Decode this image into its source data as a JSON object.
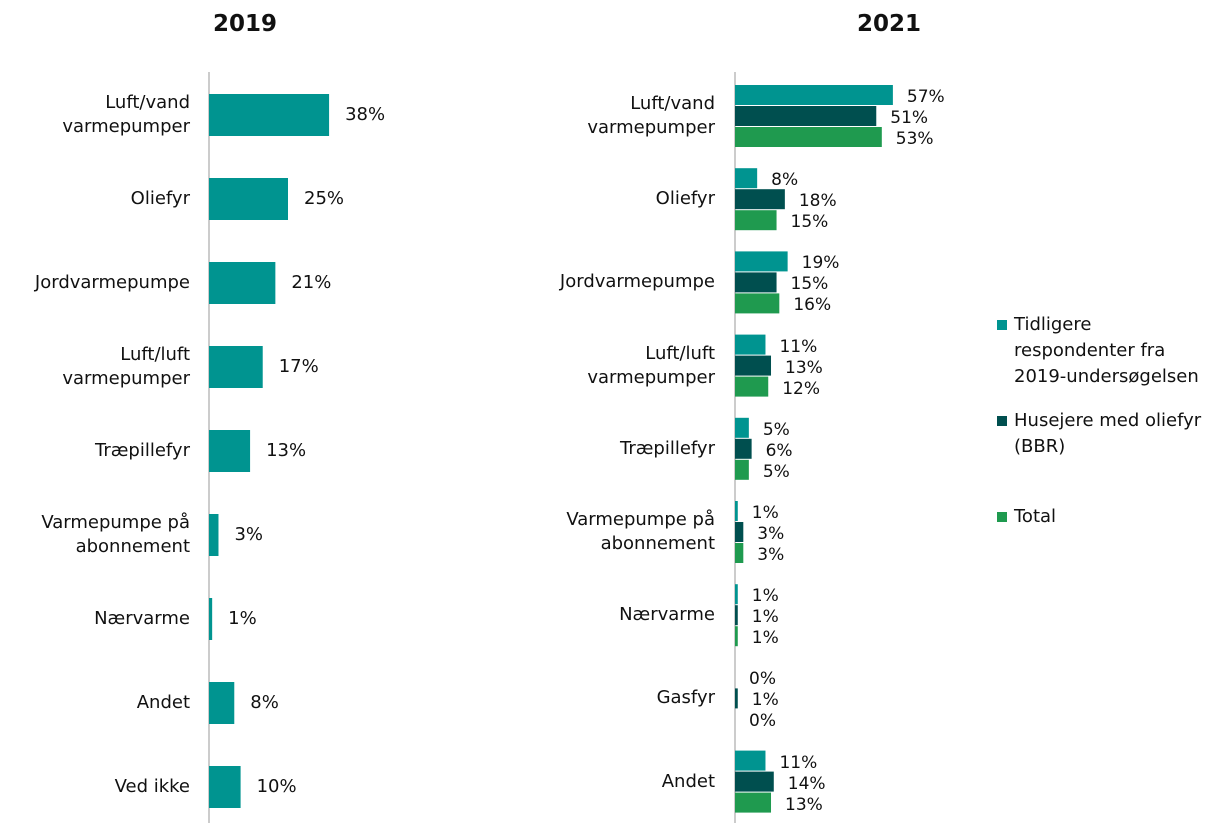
{
  "chart_data": [
    {
      "type": "bar",
      "orientation": "horizontal",
      "title": "2019",
      "categories": [
        "Luft/vand\nvarmepumper",
        "Oliefyr",
        "Jordvarmepumpe",
        "Luft/luft\nvarmepumper",
        "Træpillefyr",
        "Varmepumpe på\nabonnement",
        "Nærvarme",
        "Andet",
        "Ved ikke"
      ],
      "values": [
        38,
        25,
        21,
        17,
        13,
        3,
        1,
        8,
        10
      ],
      "value_labels": [
        "38%",
        "25%",
        "21%",
        "17%",
        "13%",
        "3%",
        "1%",
        "8%",
        "10%"
      ],
      "color": "#009490"
    },
    {
      "type": "bar",
      "orientation": "horizontal",
      "title": "2021",
      "categories": [
        "Luft/vand\nvarmepumper",
        "Oliefyr",
        "Jordvarmepumpe",
        "Luft/luft\nvarmepumper",
        "Træpillefyr",
        "Varmepumpe på\nabonnement",
        "Nærvarme",
        "Gasfyr",
        "Andet"
      ],
      "series": [
        {
          "name": "Tidligere\nrespondenter fra\n2019-undersøgelsen",
          "color": "#009490",
          "values": [
            57,
            8,
            19,
            11,
            5,
            1,
            1,
            0,
            11
          ],
          "value_labels": [
            "57%",
            "8%",
            "19%",
            "11%",
            "5%",
            "1%",
            "1%",
            "0%",
            "11%"
          ]
        },
        {
          "name": "Husejere med oliefyr\n(BBR)",
          "color": "#004f4f",
          "values": [
            51,
            18,
            15,
            13,
            6,
            3,
            1,
            1,
            14
          ],
          "value_labels": [
            "51%",
            "18%",
            "15%",
            "13%",
            "6%",
            "3%",
            "1%",
            "1%",
            "14%"
          ]
        },
        {
          "name": "Total",
          "color": "#1f9a4f",
          "values": [
            53,
            15,
            16,
            12,
            5,
            3,
            1,
            0,
            13
          ],
          "value_labels": [
            "53%",
            "15%",
            "16%",
            "12%",
            "5%",
            "3%",
            "1%",
            "0%",
            "13%"
          ]
        }
      ],
      "legend": "right"
    }
  ]
}
